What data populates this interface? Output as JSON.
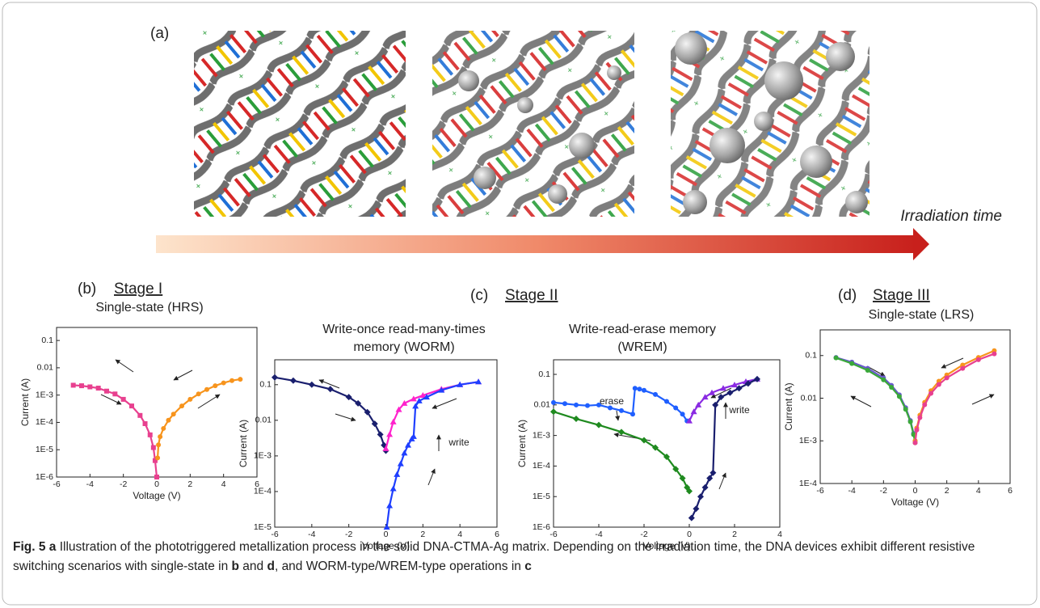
{
  "panel_a": {
    "label": "(a)",
    "arrow_label": "Irradiation time"
  },
  "panels": [
    {
      "label": "(b)",
      "stage": "Stage I"
    },
    {
      "label": "(c)",
      "stage": "Stage II"
    },
    {
      "label": "(d)",
      "stage": "Stage III"
    }
  ],
  "chart_data": [
    {
      "type": "scatter",
      "title": [
        "Single-state (HRS)"
      ],
      "x_label": "Voltage (V)",
      "y_label": "Current (A)",
      "ylog": true,
      "xlim": [
        -6,
        6
      ],
      "xticks": [
        -6,
        -4,
        -2,
        0,
        2,
        4,
        6
      ],
      "ylim": [
        1e-06,
        0.3
      ],
      "yticks": [
        {
          "value": 1e-06,
          "label": "1E-6"
        },
        {
          "value": 1e-05,
          "label": "1E-5"
        },
        {
          "value": 0.0001,
          "label": "1E-4"
        },
        {
          "value": 0.001,
          "label": "1E-3"
        },
        0.01,
        0.1
      ],
      "series": [
        {
          "color": "#e8408f",
          "marker": "square",
          "x": [
            -5,
            -4.5,
            -4,
            -3.5,
            -3,
            -2.5,
            -2,
            -1.5,
            -1,
            -0.7,
            -0.4,
            -0.2,
            -0.1,
            0
          ],
          "values": [
            0.0023,
            0.0022,
            0.002,
            0.0018,
            0.0014,
            0.0011,
            0.0007,
            0.0004,
            0.00018,
            9e-05,
            3.5e-05,
            1.2e-05,
            4e-06,
            1e-06
          ]
        },
        {
          "color": "#f7941d",
          "marker": "circle",
          "x": [
            0.05,
            0.1,
            0.2,
            0.4,
            0.7,
            1,
            1.5,
            2,
            2.5,
            3,
            3.5,
            4,
            4.5,
            5
          ],
          "values": [
            5e-06,
            1.5e-05,
            3e-05,
            6e-05,
            0.00012,
            0.0002,
            0.0004,
            0.0007,
            0.0011,
            0.0016,
            0.0022,
            0.0028,
            0.0034,
            0.0038
          ]
        }
      ],
      "annotations": []
    },
    {
      "type": "scatter",
      "title": [
        "Write-once read-many-times",
        "memory (WORM)"
      ],
      "x_label": "Voltage (V)",
      "y_label": "Current (A)",
      "ylog": true,
      "xlim": [
        -6,
        6
      ],
      "xticks": [
        -6,
        -4,
        -2,
        0,
        2,
        4,
        6
      ],
      "ylim": [
        1e-05,
        0.5
      ],
      "yticks": [
        {
          "value": 1e-05,
          "label": "1E-5"
        },
        {
          "value": 0.0001,
          "label": "1E-4"
        },
        {
          "value": 0.001,
          "label": "1E-3"
        },
        0.01,
        0.1
      ],
      "series": [
        {
          "color": "#1a1f6e",
          "marker": "diamond",
          "x": [
            -6,
            -5,
            -4,
            -3,
            -2,
            -1.5,
            -1,
            -0.6,
            -0.3,
            -0.1,
            0
          ],
          "values": [
            0.16,
            0.13,
            0.1,
            0.075,
            0.045,
            0.03,
            0.017,
            0.008,
            0.004,
            0.002,
            0.0014
          ]
        },
        {
          "color": "#ff22cc",
          "marker": "triangle",
          "x": [
            0,
            0.2,
            0.4,
            0.7,
            1,
            1.5,
            2,
            3,
            4,
            5
          ],
          "values": [
            0.0016,
            0.004,
            0.009,
            0.02,
            0.03,
            0.04,
            0.05,
            0.075,
            0.1,
            0.12
          ]
        },
        {
          "color": "#1f3fff",
          "marker": "triangle",
          "x": [
            0.05,
            0.2,
            0.4,
            0.6,
            0.8,
            1,
            1.2,
            1.4,
            1.5,
            1.6,
            1.8,
            2.2,
            3,
            4,
            5
          ],
          "values": [
            1e-05,
            4e-05,
            0.00012,
            0.0003,
            0.0006,
            0.0012,
            0.002,
            0.003,
            0.0035,
            0.025,
            0.035,
            0.045,
            0.07,
            0.1,
            0.12
          ]
        }
      ],
      "annotations": [
        "write"
      ]
    },
    {
      "type": "scatter",
      "title": [
        "Write-read-erase memory",
        "(WREM)"
      ],
      "x_label": "Voltage (V)",
      "y_label": "Current (A)",
      "ylog": true,
      "xlim": [
        -6,
        4
      ],
      "xticks": [
        -6,
        -4,
        -2,
        0,
        2,
        4
      ],
      "ylim": [
        1e-06,
        0.3
      ],
      "yticks": [
        {
          "value": 1e-06,
          "label": "1E-6"
        },
        {
          "value": 1e-05,
          "label": "1E-5"
        },
        {
          "value": 0.0001,
          "label": "1E-4"
        },
        {
          "value": 0.001,
          "label": "1E-3"
        },
        0.01,
        0.1
      ],
      "series": [
        {
          "color": "#1f5fff",
          "marker": "circle",
          "x": [
            -6,
            -5.5,
            -5,
            -4.5,
            -4,
            -3.5,
            -3,
            -2.5,
            -2.4,
            -2.2,
            -2,
            -1.5,
            -1,
            -0.6,
            -0.3,
            -0.1
          ],
          "values": [
            0.012,
            0.011,
            0.01,
            0.0095,
            0.01,
            0.008,
            0.0065,
            0.005,
            0.035,
            0.033,
            0.03,
            0.022,
            0.013,
            0.008,
            0.005,
            0.003
          ]
        },
        {
          "color": "#1f8a1f",
          "marker": "diamond",
          "x": [
            -6,
            -5,
            -4,
            -3,
            -2,
            -1.5,
            -1,
            -0.6,
            -0.3,
            -0.1,
            0
          ],
          "values": [
            0.006,
            0.0035,
            0.0022,
            0.0013,
            0.0007,
            0.0004,
            0.0002,
            8e-05,
            4e-05,
            2e-05,
            1.5e-05
          ]
        },
        {
          "color": "#8a2be2",
          "marker": "triangle",
          "x": [
            0,
            0.2,
            0.4,
            0.7,
            1,
            1.5,
            2,
            2.5,
            3
          ],
          "values": [
            0.003,
            0.006,
            0.01,
            0.018,
            0.025,
            0.035,
            0.045,
            0.058,
            0.07
          ]
        },
        {
          "color": "#1a1f6e",
          "marker": "diamond",
          "x": [
            0.1,
            0.3,
            0.5,
            0.7,
            0.9,
            1.05,
            1.15,
            1.4,
            1.8,
            2.2,
            2.6,
            3
          ],
          "values": [
            2e-06,
            4e-06,
            1e-05,
            2e-05,
            4e-05,
            6e-05,
            0.01,
            0.018,
            0.025,
            0.035,
            0.05,
            0.07
          ]
        }
      ],
      "annotations": [
        "erase",
        "write"
      ]
    },
    {
      "type": "scatter",
      "title": [
        "Single-state (LRS)"
      ],
      "x_label": "Voltage (V)",
      "y_label": "Current (A)",
      "ylog": true,
      "xlim": [
        -6,
        6
      ],
      "xticks": [
        -6,
        -4,
        -2,
        0,
        2,
        4,
        6
      ],
      "ylim": [
        0.0001,
        0.4
      ],
      "yticks": [
        {
          "value": 0.0001,
          "label": "1E-4"
        },
        {
          "value": 0.001,
          "label": "1E-3"
        },
        0.01,
        0.1
      ],
      "series": [
        {
          "color": "#6a5acd",
          "marker": "circle",
          "x": [
            -5,
            -4,
            -3,
            -2,
            -1.5,
            -1,
            -0.6,
            -0.3,
            -0.1,
            0
          ],
          "values": [
            0.09,
            0.07,
            0.05,
            0.03,
            0.02,
            0.012,
            0.006,
            0.003,
            0.0015,
            0.001
          ]
        },
        {
          "color": "#3aa83a",
          "marker": "circle",
          "x": [
            -5,
            -4,
            -3,
            -2,
            -1.5,
            -1,
            -0.6,
            -0.3,
            -0.1,
            0
          ],
          "values": [
            0.088,
            0.065,
            0.045,
            0.027,
            0.018,
            0.011,
            0.0055,
            0.0028,
            0.0014,
            0.0009
          ]
        },
        {
          "color": "#f7941d",
          "marker": "circle",
          "x": [
            0,
            0.1,
            0.3,
            0.6,
            1,
            1.5,
            2,
            3,
            4,
            5
          ],
          "values": [
            0.001,
            0.002,
            0.004,
            0.008,
            0.015,
            0.025,
            0.035,
            0.06,
            0.09,
            0.13
          ]
        },
        {
          "color": "#e8408f",
          "marker": "circle",
          "x": [
            0,
            0.1,
            0.3,
            0.6,
            1,
            1.5,
            2,
            3,
            4,
            5
          ],
          "values": [
            0.0009,
            0.0018,
            0.0035,
            0.007,
            0.013,
            0.021,
            0.03,
            0.05,
            0.08,
            0.11
          ]
        }
      ],
      "annotations": []
    }
  ],
  "caption": [
    "Fig. 5",
    "a",
    "Illustration of the phototriggered metallization process in the solid DNA-CTMA-Ag matrix. Depending on the irradiation time, the DNA devices exhibit different resistive switching scenarios with single-state in",
    "b",
    "and",
    "d",
    ", and WORM-type/WREM-type operations in",
    "c"
  ]
}
